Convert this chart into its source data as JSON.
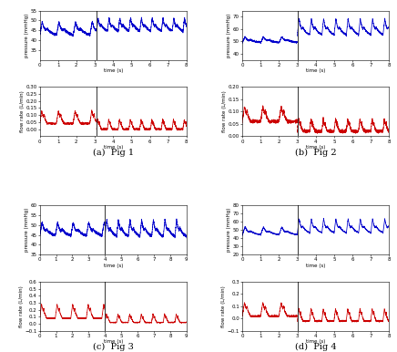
{
  "fig_width": 4.36,
  "fig_height": 3.86,
  "dpi": 100,
  "subplots": [
    {
      "label": "(a)  Pig 1",
      "pressure_ylim": [
        30,
        55
      ],
      "pressure_yticks": [
        35,
        40,
        45,
        50,
        55
      ],
      "flow_ylim": [
        -0.05,
        0.3
      ],
      "flow_yticks": [
        0.0,
        0.05,
        0.1,
        0.15,
        0.2,
        0.25,
        0.3
      ],
      "xlim": [
        0,
        8
      ],
      "xticks": [
        0,
        1,
        2,
        3,
        4,
        5,
        6,
        7,
        8
      ],
      "vline_x": 3.1,
      "pressure_freq_pre": 1.1,
      "pressure_amp_pre": 7,
      "pressure_mean_pre": 44,
      "pressure_freq_post": 1.7,
      "pressure_amp_post": 7,
      "pressure_mean_post": 46,
      "flow_freq_pre": 1.1,
      "flow_amp_pre": 0.09,
      "flow_mean_pre": 0.15,
      "flow_min_pre": 0.04,
      "flow_freq_post": 1.7,
      "flow_amp_post": 0.07,
      "flow_mean_post": 0.07,
      "flow_min_post": 0.0
    },
    {
      "label": "(b)  Pig 2",
      "pressure_ylim": [
        35,
        75
      ],
      "pressure_yticks": [
        40,
        50,
        60,
        70
      ],
      "flow_ylim": [
        0.0,
        0.2
      ],
      "flow_yticks": [
        0.0,
        0.05,
        0.1,
        0.15,
        0.2
      ],
      "xlim": [
        0,
        8
      ],
      "xticks": [
        0,
        1,
        2,
        3,
        4,
        5,
        6,
        7,
        8
      ],
      "vline_x": 3.0,
      "pressure_freq_pre": 1.0,
      "pressure_amp_pre": 5,
      "pressure_mean_pre": 50,
      "pressure_freq_post": 1.5,
      "pressure_amp_post": 14,
      "pressure_mean_post": 58,
      "flow_freq_pre": 1.0,
      "flow_amp_pre": 0.06,
      "flow_mean_pre": 0.13,
      "flow_min_pre": 0.06,
      "flow_freq_post": 1.5,
      "flow_amp_post": 0.05,
      "flow_mean_post": 0.06,
      "flow_min_post": 0.02
    },
    {
      "label": "(c)  Pig 3",
      "pressure_ylim": [
        35,
        60
      ],
      "pressure_yticks": [
        35,
        40,
        45,
        50,
        55,
        60
      ],
      "flow_ylim": [
        -0.1,
        0.6
      ],
      "flow_yticks": [
        -0.1,
        0.0,
        0.1,
        0.2,
        0.3,
        0.4,
        0.5,
        0.6
      ],
      "xlim": [
        0,
        9
      ],
      "xticks": [
        0,
        1,
        2,
        3,
        4,
        5,
        6,
        7,
        8,
        9
      ],
      "vline_x": 4.0,
      "pressure_freq_pre": 1.05,
      "pressure_amp_pre": 7,
      "pressure_mean_pre": 46,
      "pressure_freq_post": 1.4,
      "pressure_amp_post": 9,
      "pressure_mean_post": 46,
      "flow_freq_pre": 1.05,
      "flow_amp_pre": 0.2,
      "flow_mean_pre": 0.32,
      "flow_min_pre": 0.08,
      "flow_freq_post": 1.4,
      "flow_amp_post": 0.12,
      "flow_mean_post": 0.18,
      "flow_min_post": 0.02
    },
    {
      "label": "(d)  Pig 4",
      "pressure_ylim": [
        20,
        80
      ],
      "pressure_yticks": [
        20,
        30,
        40,
        50,
        60,
        70,
        80
      ],
      "flow_ylim": [
        -0.1,
        0.3
      ],
      "flow_yticks": [
        -0.1,
        0.0,
        0.1,
        0.2,
        0.3
      ],
      "xlim": [
        0,
        8
      ],
      "xticks": [
        0,
        1,
        2,
        3,
        4,
        5,
        6,
        7,
        8
      ],
      "vline_x": 3.0,
      "pressure_freq_pre": 1.0,
      "pressure_amp_pre": 10,
      "pressure_mean_pre": 46,
      "pressure_freq_post": 1.5,
      "pressure_amp_post": 18,
      "pressure_mean_post": 50,
      "flow_freq_pre": 1.0,
      "flow_amp_pre": 0.11,
      "flow_mean_pre": 0.15,
      "flow_min_pre": 0.02,
      "flow_freq_post": 1.5,
      "flow_amp_post": 0.1,
      "flow_mean_post": 0.1,
      "flow_min_post": -0.02
    }
  ],
  "pressure_color": "#0000cc",
  "flow_color": "#cc0000",
  "vline_color": "#333333",
  "xlabel": "time (s)",
  "pressure_ylabel": "pressure (mmHg)",
  "flow_ylabel": "flow rate (L/min)",
  "tick_fontsize": 4.0,
  "label_fontsize": 4.0,
  "caption_fontsize": 7.0,
  "linewidth": 0.55
}
